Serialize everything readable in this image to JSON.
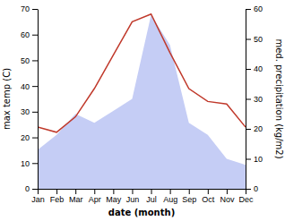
{
  "chart_data": {
    "type": "line",
    "categories": [
      "Jan",
      "Feb",
      "Mar",
      "Apr",
      "May",
      "Jun",
      "Jul",
      "Aug",
      "Sep",
      "Oct",
      "Nov",
      "Dec"
    ],
    "series": [
      {
        "type": "area",
        "axis": "y2",
        "color": "#c5cdf5",
        "values": [
          13,
          18,
          25,
          22,
          26,
          30,
          58,
          48,
          22,
          18,
          10,
          8
        ]
      },
      {
        "type": "line",
        "color": "#c0392b",
        "values": [
          24,
          22,
          28,
          39,
          52,
          65,
          68,
          53,
          39,
          34,
          33,
          24
        ]
      }
    ],
    "xlabel": "date (month)",
    "ylabel": "max temp (C)",
    "y2label": "med. precipitation (kg/m2)",
    "ylim": [
      0,
      70
    ],
    "yticks": [
      0,
      10,
      20,
      30,
      40,
      50,
      60,
      70
    ],
    "y2lim": [
      0,
      60
    ],
    "y2ticks": [
      0,
      10,
      20,
      30,
      40,
      50,
      60
    ],
    "grid": false
  }
}
